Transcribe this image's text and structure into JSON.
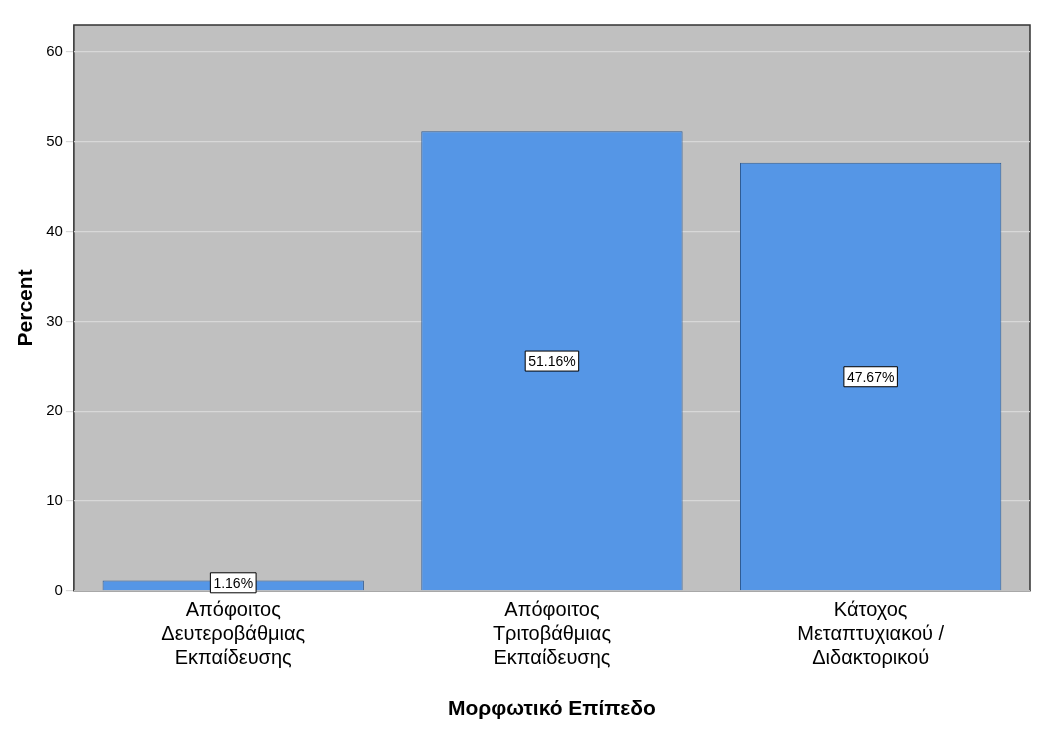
{
  "chart_data": {
    "type": "bar",
    "xlabel": "Μορφωτικό Επίπεδο",
    "ylabel": "Percent",
    "categories": [
      "Απόφοιτος Δευτεροβάθμιας Εκπαίδευσης",
      "Απόφοιτος Τριτοβάθμιας Εκπαίδευσης",
      "Κάτοχος Μεταπτυχιακού / Διδακτορικού"
    ],
    "values": [
      1.16,
      51.16,
      47.67
    ],
    "color": "#5596e6",
    "value_labels": [
      "1.16%",
      "51.16%",
      "47.67%"
    ],
    "ylim": [
      0,
      63
    ],
    "yticks": [
      0,
      10,
      20,
      30,
      40,
      50,
      60
    ],
    "grid": "y",
    "legend": false
  }
}
